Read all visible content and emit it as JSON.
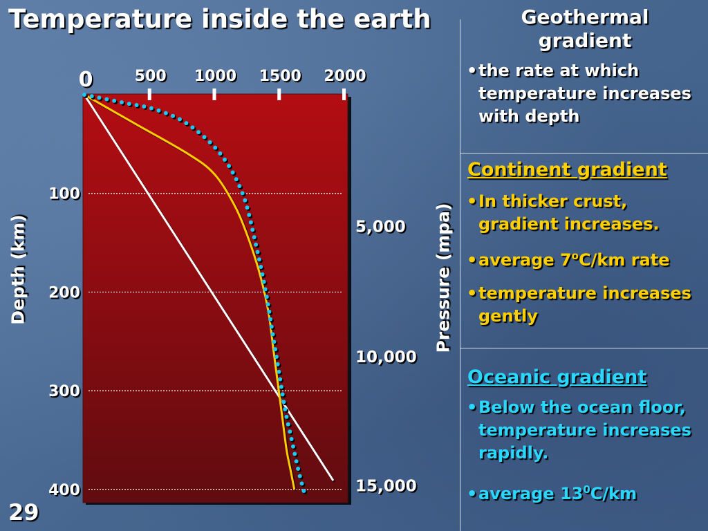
{
  "slide": {
    "title": "Temperature inside the earth",
    "number": "29"
  },
  "chart_data": {
    "type": "line",
    "ylabel": "Depth (km)",
    "pressure_label": "Pressure (mpa)",
    "x_ticks": [
      "0",
      "500",
      "1000",
      "1500",
      "2000"
    ],
    "x_tick_values": [
      0,
      500,
      1000,
      1500,
      2000
    ],
    "depth_ticks": [
      "100",
      "200",
      "300",
      "400"
    ],
    "depth_tick_values": [
      100,
      200,
      300,
      400
    ],
    "pressure_ticks": [
      "5,000",
      "10,000",
      "15,000"
    ],
    "pressure_tick_depths": [
      132,
      264,
      395
    ],
    "xlim": [
      0,
      2000
    ],
    "ylim": [
      0,
      405
    ],
    "grid": "dotted-horizontal",
    "series": [
      {
        "color": "#ffffff",
        "style": "solid",
        "x": [
          0,
          1920
        ],
        "y": [
          0,
          391
        ]
      },
      {
        "color": "#ffcc00",
        "style": "solid",
        "x": [
          0,
          400,
          800,
          1000,
          1150,
          1250,
          1350,
          1420,
          1460,
          1500,
          1530,
          1560,
          1590,
          1620
        ],
        "y": [
          0,
          30,
          60,
          80,
          110,
          140,
          180,
          220,
          260,
          300,
          330,
          360,
          380,
          400
        ]
      },
      {
        "color": "#1ec8f5",
        "style": "dotted",
        "x": [
          0,
          300,
          550,
          800,
          1050,
          1220,
          1320,
          1400,
          1450,
          1500,
          1550,
          1600,
          1650,
          1700
        ],
        "y": [
          0,
          8,
          15,
          30,
          60,
          100,
          150,
          200,
          240,
          280,
          320,
          350,
          380,
          405
        ]
      }
    ]
  },
  "geothermal": {
    "heading": "Geothermal gradient",
    "bullet": "the rate at which temperature increases with depth"
  },
  "continent": {
    "heading": "Continent gradient",
    "bullets": [
      "In thicker crust, gradient increases.",
      "average 7",
      "temperature increases gently"
    ],
    "sup": "o",
    "rate_suffix": "C/km rate"
  },
  "oceanic": {
    "heading": "Oceanic gradient",
    "bullets": [
      "Below the ocean floor, temperature increases rapidly.",
      "average 13"
    ],
    "sup": "0",
    "rate_suffix": "C/km"
  },
  "colors": {
    "plot_top": "#b30d12",
    "plot_bottom": "#600c10",
    "yellow_text": "#ffd000",
    "cyan_text": "#2ad7ff"
  }
}
